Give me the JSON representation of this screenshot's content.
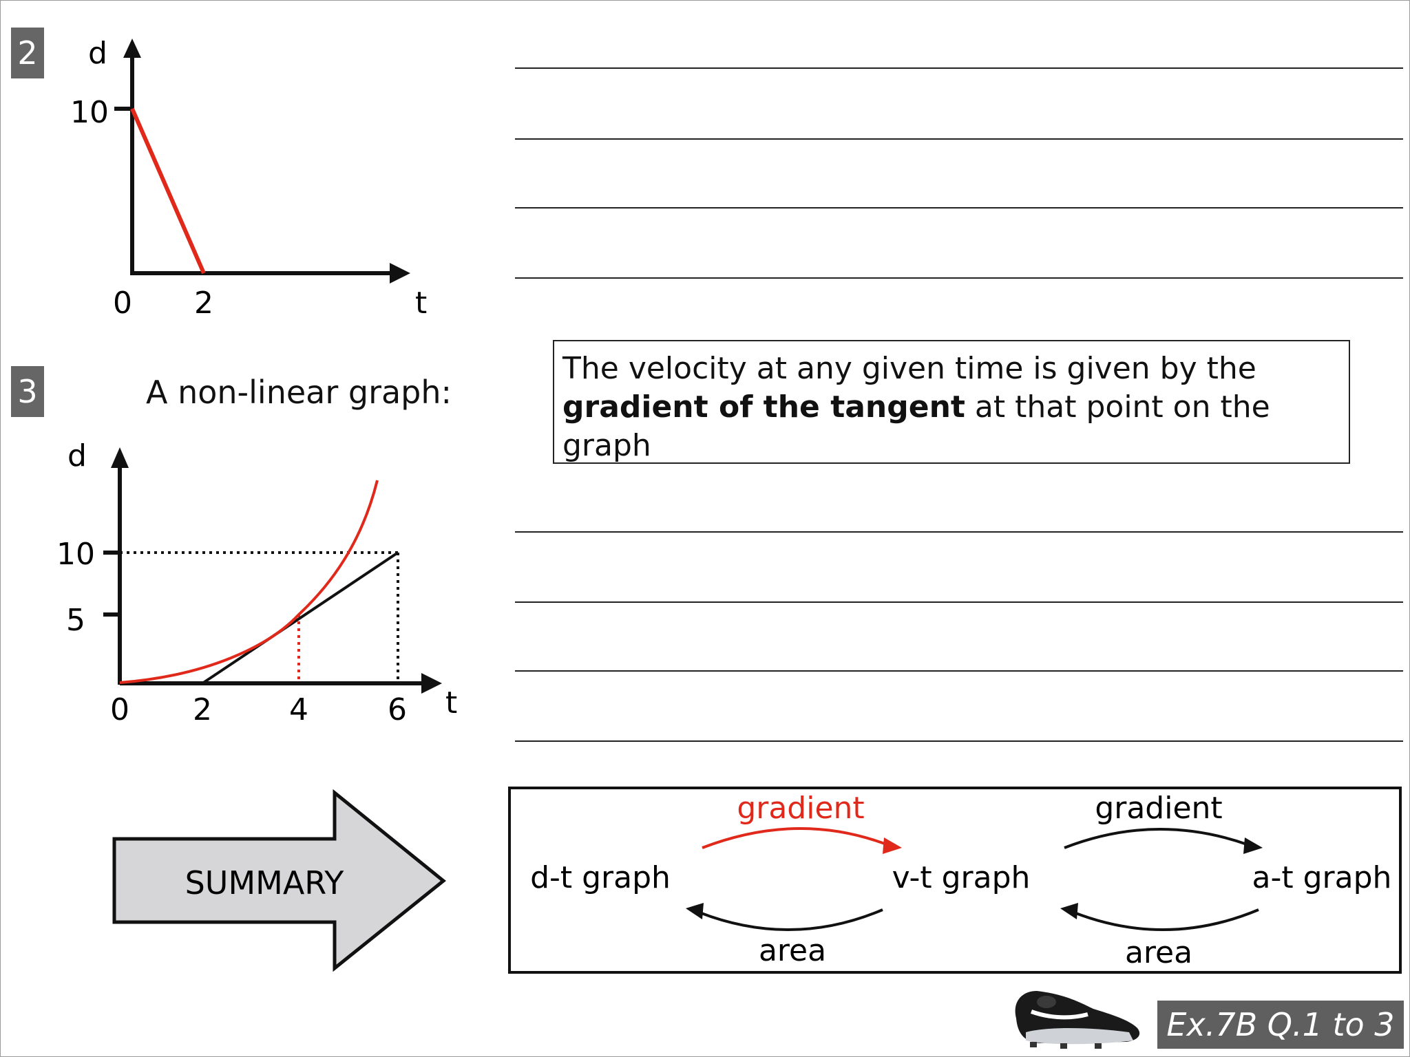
{
  "q2": {
    "number": "2",
    "axis_y": "d",
    "axis_x": "t",
    "tick_y_10": "10",
    "tick_x_0": "0",
    "tick_x_2": "2"
  },
  "q3": {
    "number": "3",
    "heading": "A non-linear graph:",
    "axis_y": "d",
    "axis_x": "t",
    "tick_y_10": "10",
    "tick_y_5": "5",
    "tick_x_0": "0",
    "tick_x_2": "2",
    "tick_x_4": "4",
    "tick_x_6": "6"
  },
  "definition": {
    "part1": "The velocity at any given time is given by the ",
    "bold": "gradient of the tangent",
    "part2": " at that point on the graph"
  },
  "summary": {
    "arrow_label": "SUMMARY",
    "dt_graph": "d-t graph",
    "vt_graph": "v-t graph",
    "at_graph": "a-t graph",
    "gradient_1": "gradient",
    "gradient_2": "gradient",
    "area_1": "area",
    "area_2": "area"
  },
  "footer": {
    "exercise": "Ex.7B Q.1 to 3",
    "icon": "football-boot-icon"
  },
  "colors": {
    "accent_red": "#e0291a",
    "badge_gray": "#666666",
    "arrow_fill": "#d6d6d8"
  },
  "chart_data": [
    {
      "type": "line",
      "xlabel": "t",
      "ylabel": "d",
      "x": [
        0,
        2
      ],
      "series": [
        {
          "values": [
            10,
            0
          ]
        }
      ],
      "xticks": [
        "0",
        "2"
      ],
      "yticks": [
        "10"
      ]
    },
    {
      "type": "line",
      "title": "A non-linear graph:",
      "xlabel": "t",
      "ylabel": "d",
      "xticks": [
        "0",
        "2",
        "4",
        "6"
      ],
      "yticks": [
        "5",
        "10"
      ],
      "series": [
        {
          "values": [
            [
              0,
              0
            ],
            [
              2,
              1.2
            ],
            [
              4,
              5
            ],
            [
              5.8,
              10
            ],
            [
              6.1,
              11.5
            ]
          ]
        },
        {
          "values": [
            [
              2,
              0
            ],
            [
              4,
              5
            ],
            [
              6,
              10
            ]
          ]
        }
      ],
      "guides": [
        {
          "from": [
            0,
            10
          ],
          "to": [
            6,
            10
          ]
        },
        {
          "from": [
            6,
            0
          ],
          "to": [
            6,
            10
          ]
        },
        {
          "from": [
            4,
            0
          ],
          "to": [
            4,
            5
          ]
        }
      ]
    }
  ]
}
